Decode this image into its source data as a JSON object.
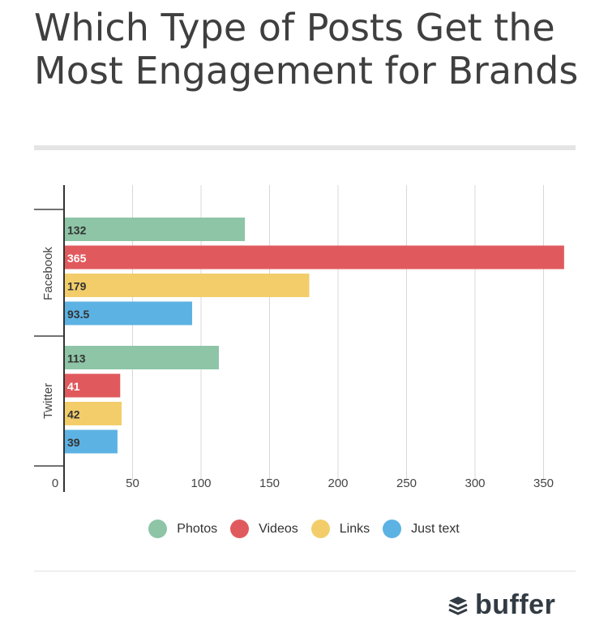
{
  "title": "Which Type of Posts Get the Most Engagement for Brands",
  "chart_data": {
    "type": "bar",
    "orientation": "horizontal",
    "title": "Which Type of Posts Get the Most Engagement for Brands",
    "categories": [
      "Facebook",
      "Twitter"
    ],
    "series": [
      {
        "name": "Photos",
        "color": "#8dc5a6",
        "values": [
          132,
          113
        ]
      },
      {
        "name": "Videos",
        "color": "#e05a5d",
        "values": [
          365,
          41
        ]
      },
      {
        "name": "Links",
        "color": "#f2cd6a",
        "values": [
          179,
          42
        ]
      },
      {
        "name": "Just text",
        "color": "#5cb2e3",
        "values": [
          93.5,
          39
        ]
      }
    ],
    "data_labels": [
      [
        "132",
        "113"
      ],
      [
        "365",
        "41"
      ],
      [
        "179",
        "42"
      ],
      [
        "93.5",
        "39"
      ]
    ],
    "value_axis": {
      "ticks": [
        0,
        50,
        100,
        150,
        200,
        250,
        300,
        350
      ],
      "tick_labels": [
        "0",
        "50",
        "100",
        "150",
        "200",
        "250",
        "300",
        "350"
      ],
      "range": [
        0,
        365
      ]
    },
    "grid": true,
    "legend": "bottom"
  },
  "legend_items": [
    "Photos",
    "Videos",
    "Links",
    "Just text"
  ],
  "legend_colors": [
    "#8dc5a6",
    "#e05a5d",
    "#f2cd6a",
    "#5cb2e3"
  ],
  "brand": {
    "name": "buffer"
  }
}
